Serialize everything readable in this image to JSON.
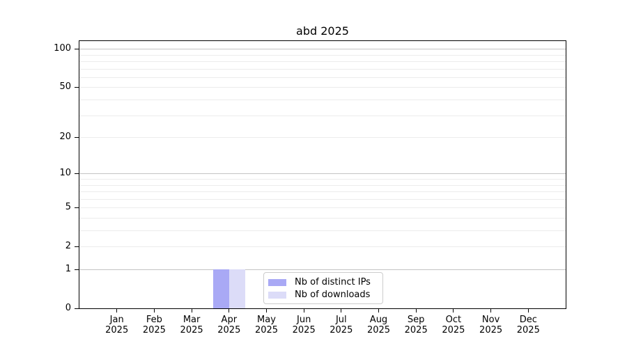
{
  "chart_data": {
    "type": "bar",
    "title": "abd 2025",
    "categories": [
      "Jan",
      "Feb",
      "Mar",
      "Apr",
      "May",
      "Jun",
      "Jul",
      "Aug",
      "Sep",
      "Oct",
      "Nov",
      "Dec"
    ],
    "x_year_label": "2025",
    "series": [
      {
        "name": "Nb of distinct IPs",
        "color": "#a9a9f5",
        "values": [
          0,
          0,
          0,
          1,
          0,
          0,
          0,
          0,
          0,
          0,
          0,
          0
        ]
      },
      {
        "name": "Nb of downloads",
        "color": "#dcdcf8",
        "values": [
          0,
          0,
          0,
          1,
          0,
          0,
          0,
          0,
          0,
          0,
          0,
          0
        ]
      }
    ],
    "y_axis": {
      "scale": "log1p",
      "ylim": [
        0,
        115
      ],
      "tick_values": [
        100,
        50,
        20,
        10,
        5,
        2,
        1,
        0
      ],
      "tick_labels": [
        "100",
        "50",
        "20",
        "10",
        "5",
        "2",
        "1",
        "0"
      ],
      "gridlines_major": [
        1,
        10,
        100
      ],
      "gridlines_minor": [
        2,
        3,
        4,
        5,
        6,
        7,
        8,
        9,
        20,
        30,
        40,
        50,
        60,
        70,
        80,
        90
      ]
    },
    "legend": {
      "position": "lower center",
      "items": [
        "Nb of distinct IPs",
        "Nb of downloads"
      ]
    },
    "grid": true
  },
  "colors": {
    "grid_major": "#c4c4c4",
    "grid_minor": "#ececec",
    "axis": "#000000",
    "text": "#000000",
    "legend_border": "#cccccc",
    "background": "#ffffff"
  }
}
